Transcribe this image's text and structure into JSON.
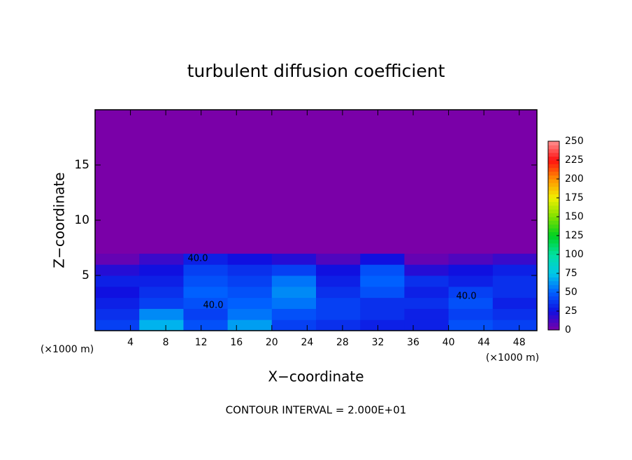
{
  "chart_data": {
    "type": "contour",
    "title": "turbulent diffusion coefficient",
    "x_label": "X−coordinate",
    "y_label": "Z−coordinate",
    "x_unit": "(×1000 m)",
    "y_unit": "(×1000 m)",
    "footer": "CONTOUR INTERVAL = 2.000E+01",
    "annotations": [
      "40.0",
      "40.0",
      "40.0"
    ],
    "xlim": [
      0,
      50
    ],
    "ylim": [
      0,
      20
    ],
    "xticks": [
      4,
      8,
      12,
      16,
      20,
      24,
      28,
      32,
      36,
      40,
      44,
      48
    ],
    "yticks": [
      5,
      10,
      15
    ],
    "x_edges": [
      0,
      5,
      10,
      15,
      20,
      25,
      30,
      35,
      40,
      45,
      50
    ],
    "z_edges": [
      0,
      1,
      2,
      3,
      4,
      5,
      6,
      7,
      20
    ],
    "z_values": [
      [
        40,
        70,
        45,
        65,
        40,
        35,
        30,
        30,
        45,
        40
      ],
      [
        35,
        60,
        40,
        55,
        45,
        40,
        35,
        30,
        40,
        35
      ],
      [
        30,
        40,
        45,
        50,
        55,
        40,
        35,
        35,
        45,
        30
      ],
      [
        25,
        35,
        50,
        45,
        60,
        35,
        45,
        30,
        40,
        35
      ],
      [
        30,
        30,
        45,
        40,
        55,
        30,
        50,
        35,
        30,
        35
      ],
      [
        20,
        25,
        40,
        35,
        40,
        25,
        45,
        20,
        25,
        30
      ],
      [
        5,
        15,
        30,
        25,
        20,
        10,
        25,
        5,
        10,
        15
      ],
      [
        0,
        0,
        0,
        0,
        0,
        0,
        0,
        0,
        0,
        0
      ]
    ],
    "colorbar_lim": [
      0,
      250
    ],
    "colorbar_ticks": [
      0,
      25,
      50,
      75,
      100,
      125,
      150,
      175,
      200,
      225,
      250
    ],
    "colormap": [
      "#7a00a8",
      "#1010e0",
      "#0060ff",
      "#00c8e8",
      "#00e0a0",
      "#00d020",
      "#80e000",
      "#f0f000",
      "#ff9000",
      "#ff1010",
      "#ff9090"
    ]
  }
}
